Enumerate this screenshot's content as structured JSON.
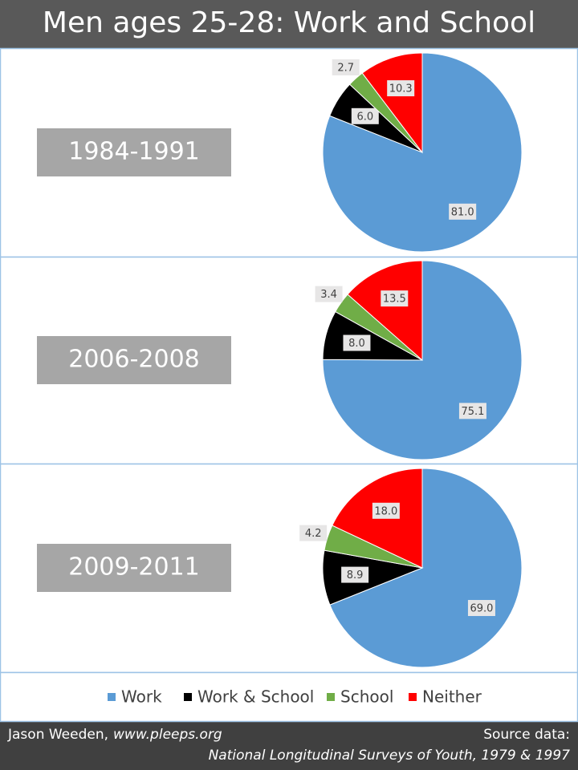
{
  "title": "Men ages 25-28: Work and School",
  "chart_data": [
    {
      "type": "pie",
      "title": "1984-1991",
      "categories": [
        "Work",
        "Work & School",
        "School",
        "Neither"
      ],
      "values": [
        81.0,
        6.0,
        2.7,
        10.3
      ],
      "value_labels": [
        "81.0",
        "6.0",
        "2.7",
        "10.3"
      ],
      "colors": [
        "#5b9bd5",
        "#000000",
        "#70ad47",
        "#ff0000"
      ]
    },
    {
      "type": "pie",
      "title": "2006-2008",
      "categories": [
        "Work",
        "Work & School",
        "School",
        "Neither"
      ],
      "values": [
        75.1,
        8.0,
        3.4,
        13.5
      ],
      "value_labels": [
        "75.1",
        "8.0",
        "3.4",
        "13.5"
      ],
      "colors": [
        "#5b9bd5",
        "#000000",
        "#70ad47",
        "#ff0000"
      ]
    },
    {
      "type": "pie",
      "title": "2009-2011",
      "categories": [
        "Work",
        "Work & School",
        "School",
        "Neither"
      ],
      "values": [
        69.0,
        8.9,
        4.2,
        18.0
      ],
      "value_labels": [
        "69.0",
        "8.9",
        "4.2",
        "18.0"
      ],
      "colors": [
        "#5b9bd5",
        "#000000",
        "#70ad47",
        "#ff0000"
      ]
    }
  ],
  "footer": {
    "author": "Jason Weeden,",
    "url": "www.pleeps.org",
    "source_heading": "Source data:",
    "source": "National Longitudinal Surveys of Youth, 1979 & 1997"
  }
}
